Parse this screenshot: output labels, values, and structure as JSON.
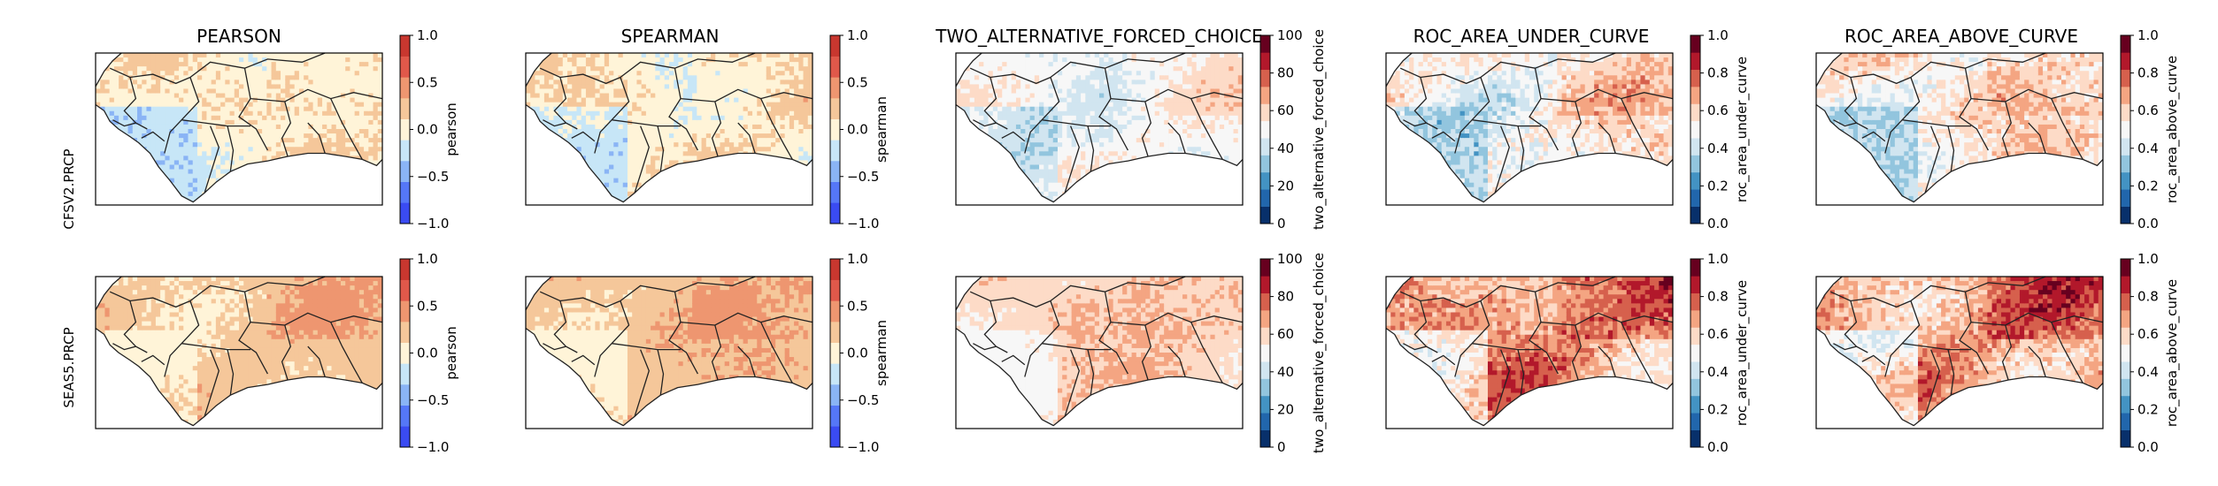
{
  "figure": {
    "columns": [
      {
        "title": "PEARSON",
        "cbar_label": "pearson",
        "cmap": "bwr"
      },
      {
        "title": "SPEARMAN",
        "cbar_label": "spearman",
        "cmap": "bwr"
      },
      {
        "title": "TWO_ALTERNATIVE_FORCED_CHOICE",
        "cbar_label": "two_alternative_forced_choice",
        "cmap": "RdBu_r"
      },
      {
        "title": "ROC_AREA_UNDER_CURVE",
        "cbar_label": "roc_area_under_curve",
        "cmap": "RdBu_r"
      },
      {
        "title": "ROC_AREA_ABOVE_CURVE",
        "cbar_label": "roc_area_above_curve",
        "cmap": "RdBu_r"
      }
    ],
    "rows": [
      {
        "label": "CFSV2.PRCP"
      },
      {
        "label": "SEAS5.PRCP"
      }
    ]
  },
  "colors": {
    "bwr": [
      "#3a4bf2",
      "#5577f7",
      "#8ab4f5",
      "#c7e6f7",
      "#fff4d8",
      "#f5c79a",
      "#ee9670",
      "#e0584a",
      "#c8372f"
    ],
    "RdBu_r": [
      "#08306b",
      "#2166ac",
      "#4393c3",
      "#92c5de",
      "#d1e5f0",
      "#f7f7f7",
      "#fddbc7",
      "#f4a582",
      "#d6604d",
      "#b2182b",
      "#67001f"
    ],
    "frame": "#000000",
    "borders": "#222222"
  },
  "chart_data": [
    {
      "type": "heatmap",
      "row": "CFSV2.PRCP",
      "title": "PEARSON",
      "cbar_label": "pearson",
      "vmin": -1.0,
      "vmax": 1.0,
      "ticks": [
        -1.0,
        -0.5,
        0.0,
        0.5,
        1.0
      ],
      "tick_labels": [
        "−1.0",
        "−0.5",
        "0.0",
        "0.5",
        "1.0"
      ],
      "cmap": "bwr",
      "pattern_bias": 0.02,
      "pattern_amp": 0.28
    },
    {
      "type": "heatmap",
      "row": "CFSV2.PRCP",
      "title": "SPEARMAN",
      "cbar_label": "spearman",
      "vmin": -1.0,
      "vmax": 1.0,
      "ticks": [
        -1.0,
        -0.5,
        0.0,
        0.5,
        1.0
      ],
      "tick_labels": [
        "−1.0",
        "−0.5",
        "0.0",
        "0.5",
        "1.0"
      ],
      "cmap": "bwr",
      "pattern_bias": 0.03,
      "pattern_amp": 0.28
    },
    {
      "type": "heatmap",
      "row": "CFSV2.PRCP",
      "title": "TWO_ALTERNATIVE_FORCED_CHOICE",
      "cbar_label": "two_alternative_forced_choice",
      "vmin": 0,
      "vmax": 100,
      "ticks": [
        0,
        20,
        40,
        60,
        80,
        100
      ],
      "tick_labels": [
        "0",
        "20",
        "40",
        "60",
        "80",
        "100"
      ],
      "cmap": "RdBu_r",
      "pattern_bias": 50,
      "pattern_amp": 12
    },
    {
      "type": "heatmap",
      "row": "CFSV2.PRCP",
      "title": "ROC_AREA_UNDER_CURVE",
      "cbar_label": "roc_area_under_curve",
      "vmin": 0.0,
      "vmax": 1.0,
      "ticks": [
        0.0,
        0.2,
        0.4,
        0.6,
        0.8,
        1.0
      ],
      "tick_labels": [
        "0.0",
        "0.2",
        "0.4",
        "0.6",
        "0.8",
        "1.0"
      ],
      "cmap": "RdBu_r",
      "pattern_bias": 0.52,
      "pattern_amp": 0.18
    },
    {
      "type": "heatmap",
      "row": "CFSV2.PRCP",
      "title": "ROC_AREA_ABOVE_CURVE",
      "cbar_label": "roc_area_above_curve",
      "vmin": 0.0,
      "vmax": 1.0,
      "ticks": [
        0.0,
        0.2,
        0.4,
        0.6,
        0.8,
        1.0
      ],
      "tick_labels": [
        "0.0",
        "0.2",
        "0.4",
        "0.6",
        "0.8",
        "1.0"
      ],
      "cmap": "RdBu_r",
      "pattern_bias": 0.54,
      "pattern_amp": 0.18
    },
    {
      "type": "heatmap",
      "row": "SEAS5.PRCP",
      "title": "PEARSON",
      "cbar_label": "pearson",
      "vmin": -1.0,
      "vmax": 1.0,
      "ticks": [
        -1.0,
        -0.5,
        0.0,
        0.5,
        1.0
      ],
      "tick_labels": [
        "−1.0",
        "−0.5",
        "0.0",
        "0.5",
        "1.0"
      ],
      "cmap": "bwr",
      "pattern_bias": 0.2,
      "pattern_amp": 0.22
    },
    {
      "type": "heatmap",
      "row": "SEAS5.PRCP",
      "title": "SPEARMAN",
      "cbar_label": "spearman",
      "vmin": -1.0,
      "vmax": 1.0,
      "ticks": [
        -1.0,
        -0.5,
        0.0,
        0.5,
        1.0
      ],
      "tick_labels": [
        "−1.0",
        "−0.5",
        "0.0",
        "0.5",
        "1.0"
      ],
      "cmap": "bwr",
      "pattern_bias": 0.24,
      "pattern_amp": 0.22
    },
    {
      "type": "heatmap",
      "row": "SEAS5.PRCP",
      "title": "TWO_ALTERNATIVE_FORCED_CHOICE",
      "cbar_label": "two_alternative_forced_choice",
      "vmin": 0,
      "vmax": 100,
      "ticks": [
        0,
        20,
        40,
        60,
        80,
        100
      ],
      "tick_labels": [
        "0",
        "20",
        "40",
        "60",
        "80",
        "100"
      ],
      "cmap": "RdBu_r",
      "pattern_bias": 60,
      "pattern_amp": 10
    },
    {
      "type": "heatmap",
      "row": "SEAS5.PRCP",
      "title": "ROC_AREA_UNDER_CURVE",
      "cbar_label": "roc_area_under_curve",
      "vmin": 0.0,
      "vmax": 1.0,
      "ticks": [
        0.0,
        0.2,
        0.4,
        0.6,
        0.8,
        1.0
      ],
      "tick_labels": [
        "0.0",
        "0.2",
        "0.4",
        "0.6",
        "0.8",
        "1.0"
      ],
      "cmap": "RdBu_r",
      "pattern_bias": 0.68,
      "pattern_amp": 0.2
    },
    {
      "type": "heatmap",
      "row": "SEAS5.PRCP",
      "title": "ROC_AREA_ABOVE_CURVE",
      "cbar_label": "roc_area_above_curve",
      "vmin": 0.0,
      "vmax": 1.0,
      "ticks": [
        0.0,
        0.2,
        0.4,
        0.6,
        0.8,
        1.0
      ],
      "tick_labels": [
        "0.0",
        "0.2",
        "0.4",
        "0.6",
        "0.8",
        "1.0"
      ],
      "cmap": "RdBu_r",
      "pattern_bias": 0.67,
      "pattern_amp": 0.2
    }
  ]
}
